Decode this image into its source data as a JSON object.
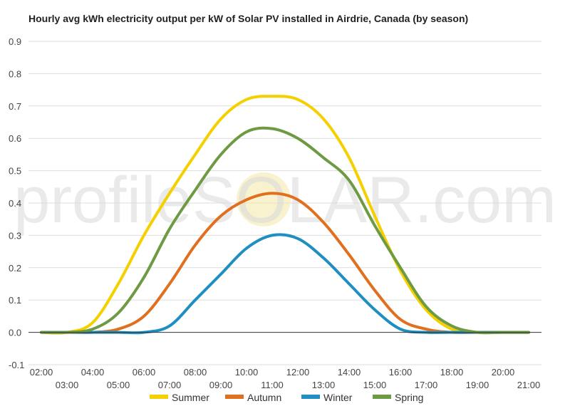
{
  "chart_data": {
    "type": "line",
    "title": "Hourly avg kWh electricity output per kW of Solar PV installed in Airdrie, Canada (by season)",
    "xlabel": "",
    "ylabel": "",
    "ylim": [
      -0.1,
      0.9
    ],
    "yticks": [
      "0.9",
      "0.8",
      "0.7",
      "0.6",
      "0.5",
      "0.4",
      "0.3",
      "0.2",
      "0.1",
      "0.0",
      "-0.1"
    ],
    "x": [
      "02:00",
      "03:00",
      "04:00",
      "05:00",
      "06:00",
      "07:00",
      "08:00",
      "09:00",
      "10:00",
      "11:00",
      "12:00",
      "13:00",
      "14:00",
      "15:00",
      "16:00",
      "17:00",
      "18:00",
      "19:00",
      "20:00",
      "21:00"
    ],
    "grid": true,
    "legend": "bottom",
    "series": [
      {
        "name": "Summer",
        "color": "#F5D000",
        "values": [
          0,
          0,
          0.03,
          0.15,
          0.3,
          0.43,
          0.55,
          0.66,
          0.72,
          0.73,
          0.72,
          0.66,
          0.54,
          0.36,
          0.19,
          0.07,
          0.01,
          0,
          0,
          0
        ]
      },
      {
        "name": "Autumn",
        "color": "#E07020",
        "values": [
          0,
          0,
          0,
          0.01,
          0.05,
          0.15,
          0.27,
          0.36,
          0.41,
          0.43,
          0.41,
          0.34,
          0.24,
          0.13,
          0.04,
          0.01,
          0,
          0,
          0,
          0
        ]
      },
      {
        "name": "Winter",
        "color": "#1E8FC0",
        "values": [
          0,
          0,
          0,
          0,
          0,
          0.02,
          0.1,
          0.18,
          0.26,
          0.3,
          0.29,
          0.23,
          0.15,
          0.07,
          0.01,
          0,
          0,
          0,
          0,
          0
        ]
      },
      {
        "name": "Spring",
        "color": "#6E9A44",
        "values": [
          0,
          0,
          0.01,
          0.06,
          0.17,
          0.32,
          0.44,
          0.55,
          0.62,
          0.63,
          0.6,
          0.54,
          0.47,
          0.33,
          0.2,
          0.08,
          0.02,
          0,
          0,
          0
        ]
      }
    ]
  },
  "watermark": "profileSOLAR.com"
}
